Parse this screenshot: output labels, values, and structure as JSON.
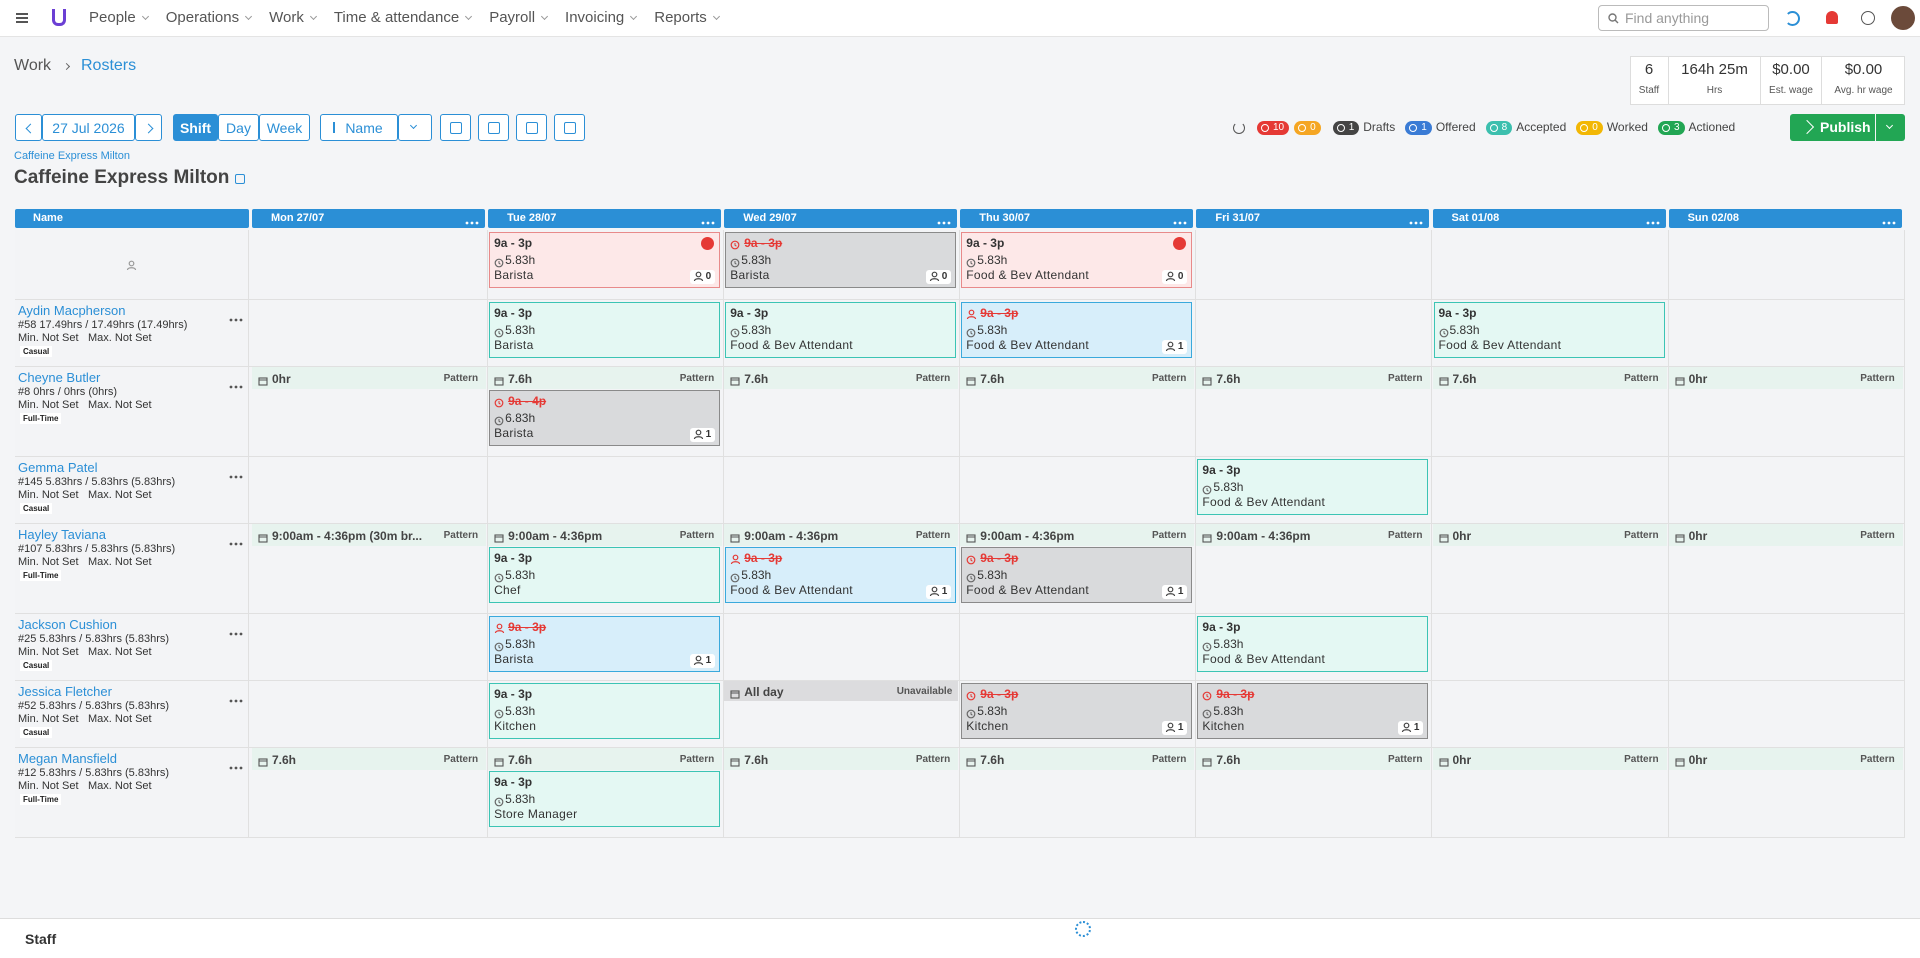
{
  "nav": {
    "menu": [
      "People",
      "Operations",
      "Work",
      "Time & attendance",
      "Payroll",
      "Invoicing",
      "Reports"
    ],
    "search_placeholder": "Find anything"
  },
  "breadcrumb": [
    "Work",
    "Rosters"
  ],
  "stats": [
    {
      "value": "6",
      "label": "Staff"
    },
    {
      "value": "164h 25m",
      "label": "Hrs"
    },
    {
      "value": "$0.00",
      "label": "Est. wage"
    },
    {
      "value": "$0.00",
      "label": "Avg. hr wage"
    }
  ],
  "toolbar": {
    "date": "27 Jul 2026",
    "views": [
      "Shift",
      "Day",
      "Week"
    ],
    "sort": "Name"
  },
  "status": {
    "errors": 10,
    "warnings": 0,
    "items": [
      {
        "count": 1,
        "label": "Drafts",
        "color": "#444444"
      },
      {
        "count": 1,
        "label": "Offered",
        "color": "#3a7bd5"
      },
      {
        "count": 8,
        "label": "Accepted",
        "color": "#3cbfae"
      },
      {
        "count": 0,
        "label": "Worked",
        "color": "#f2b705"
      },
      {
        "count": 3,
        "label": "Actioned",
        "color": "#22a654"
      }
    ],
    "publish": "Publish"
  },
  "location": {
    "link": "Caffeine Express Milton",
    "title": "Caffeine Express Milton"
  },
  "columns": {
    "name": "Name",
    "days": [
      "Mon 27/07",
      "Tue 28/07",
      "Wed 29/07",
      "Thu 30/07",
      "Fri 31/07",
      "Sat 01/08",
      "Sun 02/08"
    ]
  },
  "rows": [
    {
      "name": null,
      "cells": [
        null,
        {
          "shift": {
            "time": "9a - 3p",
            "hours": "5.83h",
            "role": "Barista",
            "count": 0,
            "style": "open",
            "alert": true
          }
        },
        {
          "shift": {
            "time": "9a - 3p",
            "hours": "5.83h",
            "role": "Barista",
            "count": 0,
            "style": "cancelled",
            "struck": true
          }
        },
        {
          "shift": {
            "time": "9a - 3p",
            "hours": "5.83h",
            "role": "Food & Bev Attendant",
            "count": 0,
            "style": "open",
            "alert": true
          }
        },
        null,
        null,
        null
      ]
    },
    {
      "name": "Aydin Macpherson",
      "info": "#58 17.49hrs / 17.49hrs (17.49hrs)",
      "min": "Min. Not Set",
      "max": "Max. Not Set",
      "tag": "Casual",
      "cells": [
        null,
        {
          "shift": {
            "time": "9a - 3p",
            "hours": "5.83h",
            "role": "Barista",
            "style": "assigned"
          }
        },
        {
          "shift": {
            "time": "9a - 3p",
            "hours": "5.83h",
            "role": "Food & Bev Attendant",
            "style": "assigned"
          }
        },
        {
          "shift": {
            "time": "9a - 3p",
            "hours": "5.83h",
            "role": "Food & Bev Attendant",
            "count": 1,
            "style": "offered",
            "struck": true
          }
        },
        null,
        {
          "shift": {
            "time": "9a - 3p",
            "hours": "5.83h",
            "role": "Food & Bev Attendant",
            "style": "assigned"
          }
        },
        null
      ]
    },
    {
      "name": "Cheyne Butler",
      "info": "#8 0hrs / 0hrs (0hrs)",
      "min": "Min. Not Set",
      "max": "Max. Not Set",
      "tag": "Full-Time",
      "cells": [
        {
          "pattern": {
            "text": "0hr",
            "label": "Pattern"
          }
        },
        {
          "pattern": {
            "text": "7.6h",
            "label": "Pattern"
          },
          "shift": {
            "time": "9a - 4p",
            "hours": "6.83h",
            "role": "Barista",
            "count": 1,
            "style": "cancelled",
            "struck": true
          }
        },
        {
          "pattern": {
            "text": "7.6h",
            "label": "Pattern"
          }
        },
        {
          "pattern": {
            "text": "7.6h",
            "label": "Pattern"
          }
        },
        {
          "pattern": {
            "text": "7.6h",
            "label": "Pattern"
          }
        },
        {
          "pattern": {
            "text": "7.6h",
            "label": "Pattern"
          }
        },
        {
          "pattern": {
            "text": "0hr",
            "label": "Pattern"
          }
        }
      ]
    },
    {
      "name": "Gemma Patel",
      "info": "#145 5.83hrs / 5.83hrs (5.83hrs)",
      "min": "Min. Not Set",
      "max": "Max. Not Set",
      "tag": "Casual",
      "cells": [
        null,
        null,
        null,
        null,
        {
          "shift": {
            "time": "9a - 3p",
            "hours": "5.83h",
            "role": "Food & Bev Attendant",
            "style": "assigned"
          }
        },
        null,
        null
      ]
    },
    {
      "name": "Hayley Taviana",
      "info": "#107 5.83hrs / 5.83hrs (5.83hrs)",
      "min": "Min. Not Set",
      "max": "Max. Not Set",
      "tag": "Full-Time",
      "cells": [
        {
          "pattern": {
            "text": "9:00am - 4:36pm (30m br...",
            "label": "Pattern"
          }
        },
        {
          "pattern": {
            "text": "9:00am - 4:36pm",
            "label": "Pattern"
          },
          "shift": {
            "time": "9a - 3p",
            "hours": "5.83h",
            "role": "Chef",
            "style": "assigned"
          }
        },
        {
          "pattern": {
            "text": "9:00am - 4:36pm",
            "label": "Pattern"
          },
          "shift": {
            "time": "9a - 3p",
            "hours": "5.83h",
            "role": "Food & Bev Attendant",
            "count": 1,
            "style": "offered",
            "struck": true
          }
        },
        {
          "pattern": {
            "text": "9:00am - 4:36pm",
            "label": "Pattern"
          },
          "shift": {
            "time": "9a - 3p",
            "hours": "5.83h",
            "role": "Food & Bev Attendant",
            "count": 1,
            "style": "cancelled",
            "struck": true
          }
        },
        {
          "pattern": {
            "text": "9:00am - 4:36pm",
            "label": "Pattern"
          }
        },
        {
          "pattern": {
            "text": "0hr",
            "label": "Pattern"
          }
        },
        {
          "pattern": {
            "text": "0hr",
            "label": "Pattern"
          }
        }
      ]
    },
    {
      "name": "Jackson Cushion",
      "info": "#25 5.83hrs / 5.83hrs (5.83hrs)",
      "min": "Min. Not Set",
      "max": "Max. Not Set",
      "tag": "Casual",
      "cells": [
        null,
        {
          "shift": {
            "time": "9a - 3p",
            "hours": "5.83h",
            "role": "Barista",
            "count": 1,
            "style": "offered",
            "struck": true
          }
        },
        null,
        null,
        {
          "shift": {
            "time": "9a - 3p",
            "hours": "5.83h",
            "role": "Food & Bev Attendant",
            "style": "assigned"
          }
        },
        null,
        null
      ]
    },
    {
      "name": "Jessica Fletcher",
      "info": "#52 5.83hrs / 5.83hrs (5.83hrs)",
      "min": "Min. Not Set",
      "max": "Max. Not Set",
      "tag": "Casual",
      "cells": [
        null,
        {
          "shift": {
            "time": "9a - 3p",
            "hours": "5.83h",
            "role": "Kitchen",
            "style": "assigned"
          }
        },
        {
          "unavailable": {
            "text": "All day",
            "label": "Unavailable"
          }
        },
        {
          "shift": {
            "time": "9a - 3p",
            "hours": "5.83h",
            "role": "Kitchen",
            "count": 1,
            "style": "cancelled",
            "struck": true
          }
        },
        {
          "shift": {
            "time": "9a - 3p",
            "hours": "5.83h",
            "role": "Kitchen",
            "count": 1,
            "style": "cancelled",
            "struck": true
          }
        },
        null,
        null
      ]
    },
    {
      "name": "Megan Mansfield",
      "info": "#12 5.83hrs / 5.83hrs (5.83hrs)",
      "min": "Min. Not Set",
      "max": "Max. Not Set",
      "tag": "Full-Time",
      "cells": [
        {
          "pattern": {
            "text": "7.6h",
            "label": "Pattern"
          }
        },
        {
          "pattern": {
            "text": "7.6h",
            "label": "Pattern"
          },
          "shift": {
            "time": "9a - 3p",
            "hours": "5.83h",
            "role": "Store Manager",
            "style": "assigned"
          }
        },
        {
          "pattern": {
            "text": "7.6h",
            "label": "Pattern"
          }
        },
        {
          "pattern": {
            "text": "7.6h",
            "label": "Pattern"
          }
        },
        {
          "pattern": {
            "text": "7.6h",
            "label": "Pattern"
          }
        },
        {
          "pattern": {
            "text": "0hr",
            "label": "Pattern"
          }
        },
        {
          "pattern": {
            "text": "0hr",
            "label": "Pattern"
          }
        }
      ]
    }
  ],
  "footer": {
    "title": "Staff"
  }
}
